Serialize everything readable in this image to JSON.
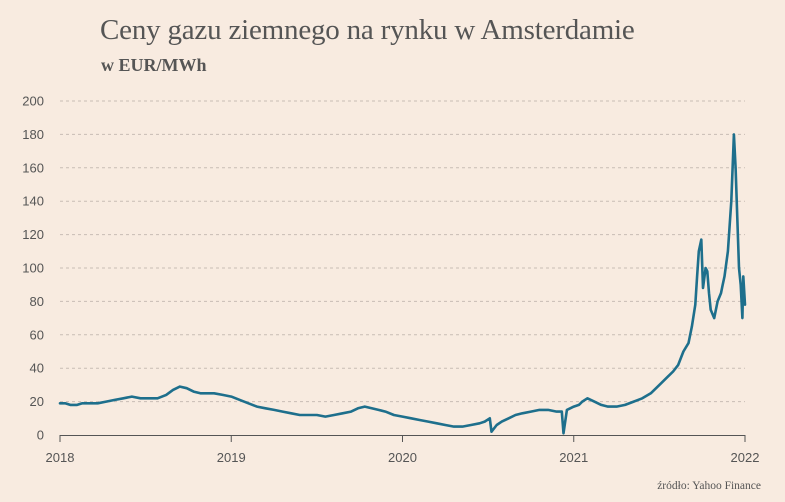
{
  "chart_data": {
    "type": "line",
    "title": "Ceny gazu ziemnego na rynku w Amsterdamie",
    "subtitle": "w EUR/MWh",
    "xlabel": "",
    "ylabel": "",
    "x_ticks": [
      "2018",
      "2019",
      "2020",
      "2021",
      "2022"
    ],
    "y_ticks": [
      0,
      20,
      40,
      60,
      80,
      100,
      120,
      140,
      160,
      180,
      200
    ],
    "ylim": [
      0,
      200
    ],
    "xlim": [
      2018.0,
      2022.0
    ],
    "grid": "horizontal-dashed",
    "legend": "none",
    "line_color": "#1e6f8c",
    "source": "źródło: Yahoo Finance",
    "series": [
      {
        "name": "",
        "x": [
          2018.0,
          2018.03,
          2018.06,
          2018.1,
          2018.13,
          2018.17,
          2018.22,
          2018.27,
          2018.32,
          2018.37,
          2018.42,
          2018.47,
          2018.52,
          2018.57,
          2018.62,
          2018.66,
          2018.7,
          2018.74,
          2018.78,
          2018.82,
          2018.86,
          2018.9,
          2018.95,
          2019.0,
          2019.05,
          2019.1,
          2019.15,
          2019.2,
          2019.25,
          2019.3,
          2019.35,
          2019.4,
          2019.45,
          2019.5,
          2019.55,
          2019.6,
          2019.65,
          2019.7,
          2019.74,
          2019.78,
          2019.82,
          2019.86,
          2019.9,
          2019.95,
          2020.0,
          2020.05,
          2020.1,
          2020.15,
          2020.2,
          2020.25,
          2020.3,
          2020.35,
          2020.4,
          2020.45,
          2020.48,
          2020.51,
          2020.52,
          2020.55,
          2020.58,
          2020.62,
          2020.66,
          2020.7,
          2020.75,
          2020.8,
          2020.85,
          2020.9,
          2020.93,
          2020.94,
          2020.96,
          2021.0,
          2021.03,
          2021.05,
          2021.08,
          2021.12,
          2021.16,
          2021.2,
          2021.25,
          2021.3,
          2021.35,
          2021.4,
          2021.45,
          2021.5,
          2021.55,
          2021.58,
          2021.61,
          2021.64,
          2021.67,
          2021.69,
          2021.71,
          2021.72,
          2021.73,
          2021.745,
          2021.755,
          2021.77,
          2021.78,
          2021.79,
          2021.8,
          2021.82,
          2021.84,
          2021.86,
          2021.87,
          2021.88,
          2021.9,
          2021.92,
          2021.935,
          2021.945,
          2021.955,
          2021.965,
          2021.975,
          2021.985,
          2021.99,
          2022.0
        ],
        "values": [
          19,
          19,
          18,
          18,
          19,
          19,
          19,
          20,
          21,
          22,
          23,
          22,
          22,
          22,
          24,
          27,
          29,
          28,
          26,
          25,
          25,
          25,
          24,
          23,
          21,
          19,
          17,
          16,
          15,
          14,
          13,
          12,
          12,
          12,
          11,
          12,
          13,
          14,
          16,
          17,
          16,
          15,
          14,
          12,
          11,
          10,
          9,
          8,
          7,
          6,
          5,
          5,
          6,
          7,
          8,
          10,
          2,
          6,
          8,
          10,
          12,
          13,
          14,
          15,
          15,
          14,
          14,
          1,
          15,
          17,
          18,
          20,
          22,
          20,
          18,
          17,
          17,
          18,
          20,
          22,
          25,
          30,
          35,
          38,
          42,
          50,
          55,
          65,
          78,
          95,
          110,
          117,
          88,
          100,
          98,
          85,
          75,
          70,
          80,
          85,
          90,
          95,
          110,
          140,
          180,
          160,
          130,
          100,
          90,
          70,
          95,
          78
        ]
      }
    ]
  }
}
